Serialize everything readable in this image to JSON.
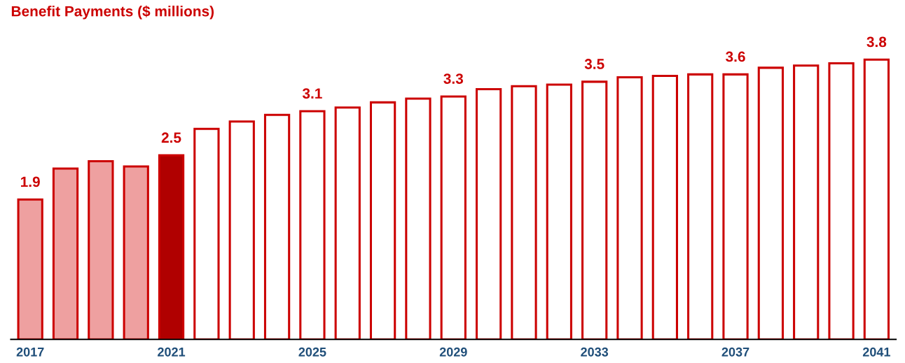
{
  "chart_data": {
    "type": "bar",
    "title": "Benefit Payments ($ millions)",
    "categories": [
      "2017",
      null,
      null,
      null,
      "2021",
      null,
      null,
      null,
      "2025",
      null,
      null,
      null,
      "2029",
      null,
      null,
      null,
      "2033",
      null,
      null,
      null,
      "2037",
      null,
      null,
      null,
      "2041"
    ],
    "values": [
      1.9,
      2.32,
      2.42,
      2.35,
      2.5,
      2.86,
      2.96,
      3.05,
      3.1,
      3.15,
      3.22,
      3.27,
      3.3,
      3.4,
      3.44,
      3.46,
      3.5,
      3.56,
      3.58,
      3.6,
      3.6,
      3.69,
      3.72,
      3.75,
      3.8
    ],
    "value_labels": [
      "1.9",
      null,
      null,
      null,
      "2.5",
      null,
      null,
      null,
      "3.1",
      null,
      null,
      null,
      "3.3",
      null,
      null,
      null,
      "3.5",
      null,
      null,
      null,
      "3.6",
      null,
      null,
      null,
      "3.8"
    ],
    "colors": [
      "#eea0a0",
      "#eea0a0",
      "#eea0a0",
      "#eea0a0",
      "#b00000",
      "#ffffff",
      "#ffffff",
      "#ffffff",
      "#ffffff",
      "#ffffff",
      "#ffffff",
      "#ffffff",
      "#ffffff",
      "#ffffff",
      "#ffffff",
      "#ffffff",
      "#ffffff",
      "#ffffff",
      "#ffffff",
      "#ffffff",
      "#ffffff",
      "#ffffff",
      "#ffffff",
      "#ffffff",
      "#ffffff"
    ],
    "grid": false,
    "legend": false
  }
}
